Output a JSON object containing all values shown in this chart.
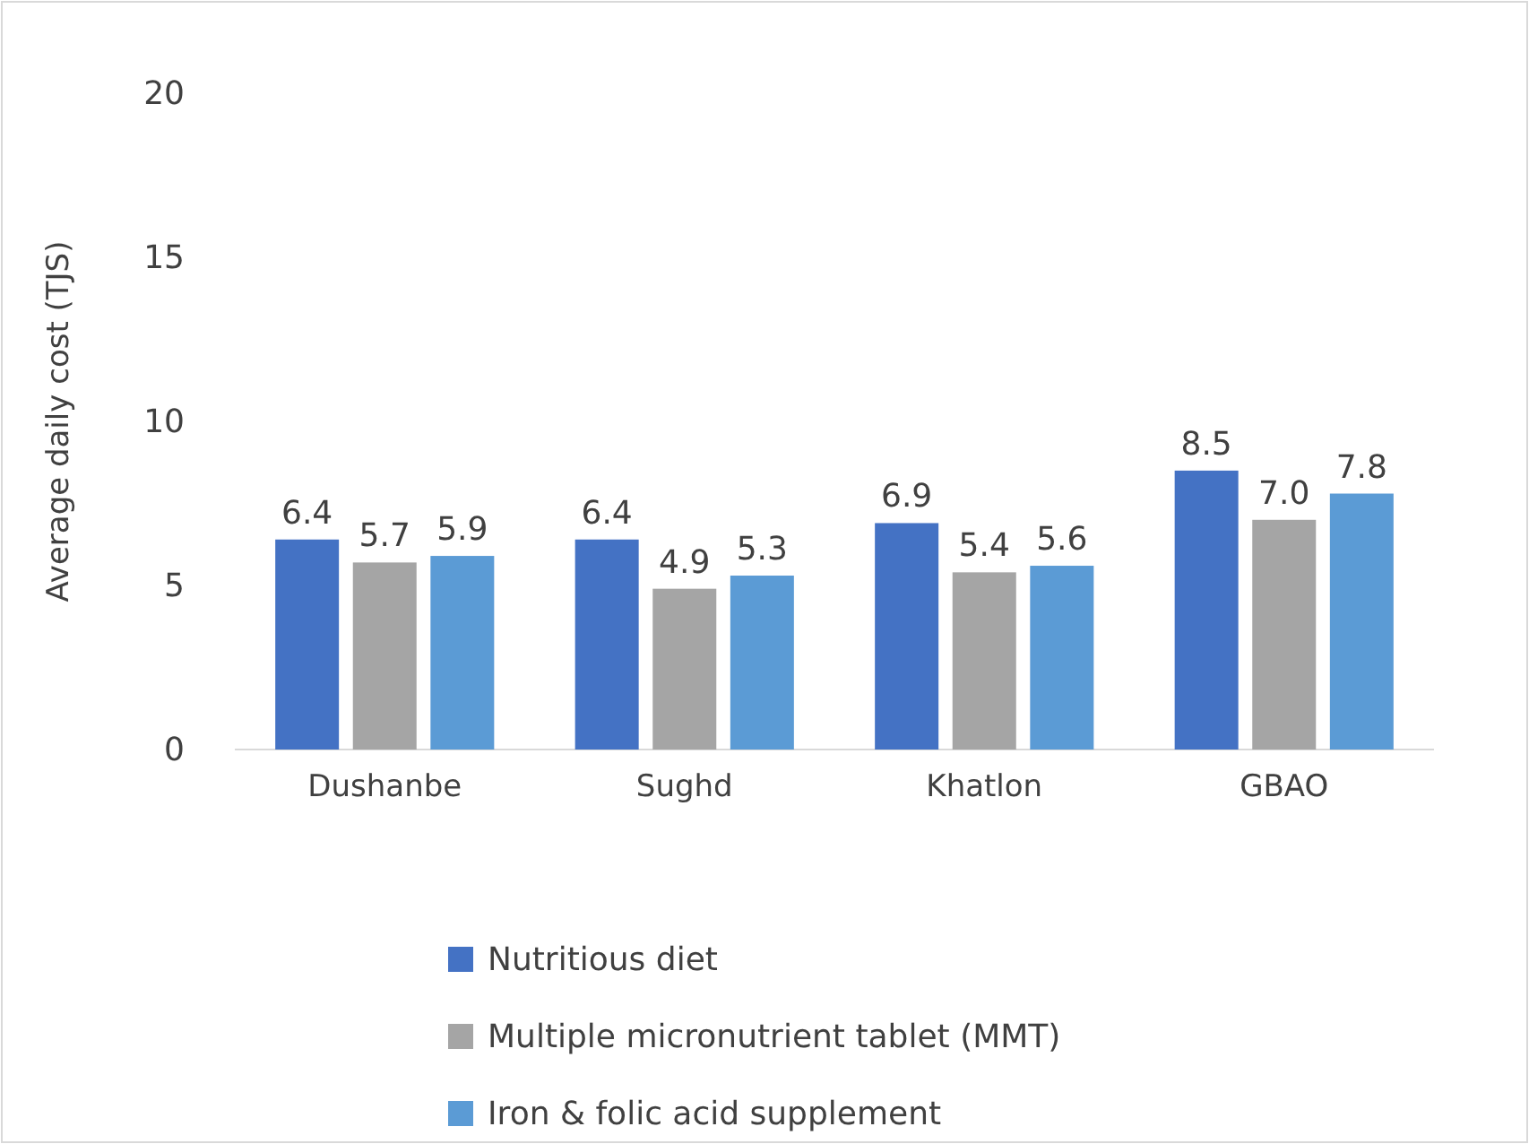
{
  "chart_data": {
    "type": "bar",
    "ylabel": "Average daily cost (TJS)",
    "categories": [
      "Dushanbe",
      "Sughd",
      "Khatlon",
      "GBAO"
    ],
    "series": [
      {
        "name": "Nutritious diet",
        "color": "#4472c4",
        "values": [
          6.4,
          6.4,
          6.9,
          8.5
        ],
        "value_labels": [
          "6.4",
          "6.4",
          "6.9",
          "8.5"
        ]
      },
      {
        "name": "Multiple micronutrient tablet (MMT)",
        "color": "#a5a5a5",
        "values": [
          5.7,
          4.9,
          5.4,
          7.0
        ],
        "value_labels": [
          "5.7",
          "4.9",
          "5.4",
          "7.0"
        ]
      },
      {
        "name": "Iron & folic acid supplement",
        "color": "#5b9bd5",
        "values": [
          5.9,
          5.3,
          5.6,
          7.8
        ],
        "value_labels": [
          "5.9",
          "5.3",
          "5.6",
          "7.8"
        ]
      }
    ],
    "ylim": [
      0,
      20
    ],
    "yticks": [
      0,
      5,
      10,
      15,
      20
    ],
    "grid": false,
    "legend": "bottom"
  }
}
